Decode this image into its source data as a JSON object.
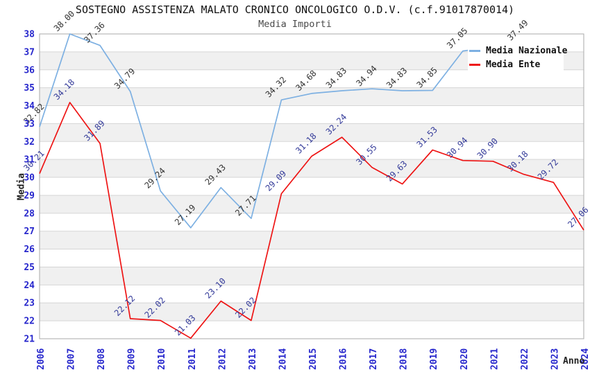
{
  "title": "SOSTEGNO ASSISTENZA MALATO CRONICO ONCOLOGICO O.D.V. (c.f.91017870014)",
  "subtitle": "Media Importi",
  "axes": {
    "y_label": "Media",
    "x_label": "Anno",
    "y_ticks": [
      21,
      22,
      23,
      24,
      25,
      26,
      27,
      28,
      29,
      30,
      31,
      32,
      33,
      34,
      35,
      36,
      37,
      38
    ]
  },
  "legend": {
    "items": [
      {
        "label": "Media Nazionale",
        "color": "#7db0e2"
      },
      {
        "label": "Media Ente",
        "color": "#ee1414"
      }
    ]
  },
  "colors": {
    "national_line": "#7db0e2",
    "ente_line": "#ee1414",
    "axis_tick_text": "#2626cc",
    "national_point_label": "#333333",
    "ente_point_label": "#333a99",
    "gridline": "#d5d5d5",
    "band_gray": "#f0f0f0",
    "plot_border": "#aaaaaa",
    "legend_bg": "#ffffff"
  },
  "chart_data": {
    "type": "line",
    "x": [
      2006,
      2007,
      2008,
      2009,
      2010,
      2011,
      2012,
      2013,
      2014,
      2015,
      2016,
      2017,
      2018,
      2019,
      2020,
      2021,
      2022,
      2023,
      2024
    ],
    "series": [
      {
        "name": "Media Nazionale",
        "color": "#7db0e2",
        "label_color": "#333333",
        "values": [
          32.82,
          38.0,
          37.36,
          34.79,
          29.24,
          27.19,
          29.43,
          27.71,
          34.32,
          34.68,
          34.83,
          34.94,
          34.83,
          34.85,
          37.05,
          null,
          37.49,
          null,
          null
        ]
      },
      {
        "name": "Media Ente",
        "color": "#ee1414",
        "label_color": "#333a99",
        "values": [
          30.21,
          34.18,
          31.89,
          22.12,
          22.02,
          21.03,
          23.1,
          22.02,
          29.09,
          31.18,
          32.24,
          30.55,
          29.63,
          31.53,
          30.94,
          30.9,
          30.18,
          29.72,
          27.06
        ]
      }
    ],
    "title": "SOSTEGNO ASSISTENZA MALATO CRONICO ONCOLOGICO O.D.V. (c.f.91017870014)",
    "subtitle": "Media Importi",
    "xlabel": "Anno",
    "ylabel": "Media",
    "ylim": [
      21,
      38
    ],
    "grid": "horizontal gridlines at every integer, alternating white/gray one-unit bands",
    "legend_position": "top-right inside plot, opaque white box covering lines behind it",
    "point_labels": "values shown rotated 45 degrees above each point, two decimals"
  }
}
